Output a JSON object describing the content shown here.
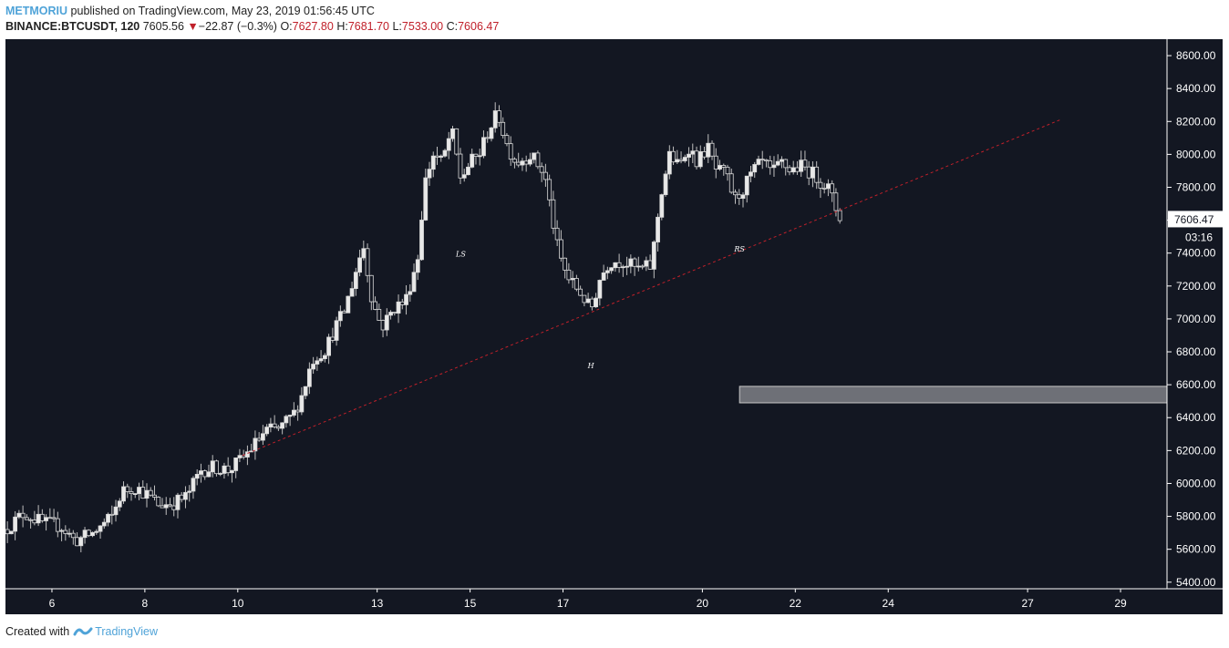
{
  "header": {
    "author": "METMORIU",
    "published_text": "published on TradingView.com, May 23, 2019 01:56:45 UTC",
    "symbol": "BINANCE:BTCUSDT, 120",
    "last": "7605.56",
    "change_arrow": "▼",
    "change": "−22.87 (−0.3%)",
    "o_label": "O:",
    "o_value": "7627.80",
    "h_label": "H:",
    "h_value": "7681.70",
    "l_label": "L:",
    "l_value": "7533.00",
    "c_label": "C:",
    "c_value": "7606.47"
  },
  "footer": {
    "created_with": "Created with",
    "brand": "TradingView",
    "brand_icon": "tradingview-logo-icon"
  },
  "colors": {
    "background": "#131722",
    "axis_bg": "#131722",
    "candle": "#e8e8e8",
    "trendline": "#c0202a",
    "zone": "#6e7077",
    "price_label_bg": "#ffffff",
    "link": "#4fa3d8"
  },
  "chart_data": {
    "type": "candlestick",
    "title": "BINANCE:BTCUSDT, 120",
    "ylim": [
      5360,
      8700
    ],
    "x_range": [
      5.0,
      30.0
    ],
    "y_ticks": [
      "8600.00",
      "8400.00",
      "8200.00",
      "8000.00",
      "7800.00",
      "7600.00",
      "7400.00",
      "7200.00",
      "7000.00",
      "6800.00",
      "6600.00",
      "6400.00",
      "6200.00",
      "6000.00",
      "5800.00",
      "5600.00",
      "5400.00"
    ],
    "x_ticks": [
      {
        "label": "6",
        "x": 6
      },
      {
        "label": "8",
        "x": 8
      },
      {
        "label": "10",
        "x": 10
      },
      {
        "label": "13",
        "x": 13
      },
      {
        "label": "15",
        "x": 15
      },
      {
        "label": "17",
        "x": 17
      },
      {
        "label": "20",
        "x": 20
      },
      {
        "label": "22",
        "x": 22
      },
      {
        "label": "24",
        "x": 24
      },
      {
        "label": "27",
        "x": 27
      },
      {
        "label": "29",
        "x": 29
      }
    ],
    "current_price_label": "7606.47",
    "current_price": 7606.47,
    "countdown_label": "03:16",
    "annotations": [
      {
        "text": "LS",
        "x": 14.8,
        "y": 7380
      },
      {
        "text": "H",
        "x": 17.6,
        "y": 6700
      },
      {
        "text": "RS",
        "x": 20.8,
        "y": 7410
      }
    ],
    "trendline": {
      "x1": 10.1,
      "y1": 6170,
      "x2": 27.7,
      "y2": 8210
    },
    "zone": {
      "x1": 20.8,
      "x2": 30.0,
      "y_low": 6490,
      "y_high": 6590
    },
    "price_path": [
      [
        5.0,
        5720
      ],
      [
        5.4,
        5820
      ],
      [
        5.8,
        5760
      ],
      [
        6.2,
        5740
      ],
      [
        6.5,
        5650
      ],
      [
        6.9,
        5700
      ],
      [
        7.3,
        5800
      ],
      [
        7.5,
        5950
      ],
      [
        7.8,
        5980
      ],
      [
        8.1,
        5920
      ],
      [
        8.3,
        5870
      ],
      [
        8.6,
        5880
      ],
      [
        8.9,
        5920
      ],
      [
        9.2,
        6080
      ],
      [
        9.5,
        6100
      ],
      [
        9.8,
        6080
      ],
      [
        10.1,
        6150
      ],
      [
        10.4,
        6250
      ],
      [
        10.6,
        6320
      ],
      [
        10.9,
        6330
      ],
      [
        11.2,
        6420
      ],
      [
        11.4,
        6550
      ],
      [
        11.6,
        6750
      ],
      [
        11.9,
        6820
      ],
      [
        12.1,
        6950
      ],
      [
        12.3,
        7050
      ],
      [
        12.5,
        7250
      ],
      [
        12.7,
        7450
      ],
      [
        12.9,
        7100
      ],
      [
        13.1,
        6950
      ],
      [
        13.4,
        7080
      ],
      [
        13.6,
        7100
      ],
      [
        13.9,
        7400
      ],
      [
        14.0,
        7800
      ],
      [
        14.2,
        8000
      ],
      [
        14.4,
        7950
      ],
      [
        14.6,
        8150
      ],
      [
        14.8,
        7850
      ],
      [
        15.0,
        7950
      ],
      [
        15.2,
        8000
      ],
      [
        15.4,
        8150
      ],
      [
        15.6,
        8250
      ],
      [
        15.8,
        8050
      ],
      [
        16.0,
        7950
      ],
      [
        16.3,
        8000
      ],
      [
        16.6,
        7880
      ],
      [
        16.9,
        7400
      ],
      [
        17.1,
        7250
      ],
      [
        17.4,
        7150
      ],
      [
        17.6,
        7050
      ],
      [
        17.8,
        7250
      ],
      [
        18.0,
        7350
      ],
      [
        18.3,
        7350
      ],
      [
        18.6,
        7300
      ],
      [
        18.9,
        7320
      ],
      [
        19.1,
        7750
      ],
      [
        19.3,
        8000
      ],
      [
        19.5,
        7920
      ],
      [
        19.7,
        8050
      ],
      [
        19.9,
        7950
      ],
      [
        20.1,
        8050
      ],
      [
        20.3,
        7900
      ],
      [
        20.5,
        7880
      ],
      [
        20.7,
        7720
      ],
      [
        20.9,
        7800
      ],
      [
        21.1,
        7900
      ],
      [
        21.3,
        7950
      ],
      [
        21.5,
        7880
      ],
      [
        21.7,
        7950
      ],
      [
        21.9,
        7900
      ],
      [
        22.1,
        7930
      ],
      [
        22.3,
        7900
      ],
      [
        22.5,
        7850
      ],
      [
        22.7,
        7800
      ],
      [
        22.9,
        7650
      ],
      [
        23.0,
        7606
      ]
    ]
  }
}
